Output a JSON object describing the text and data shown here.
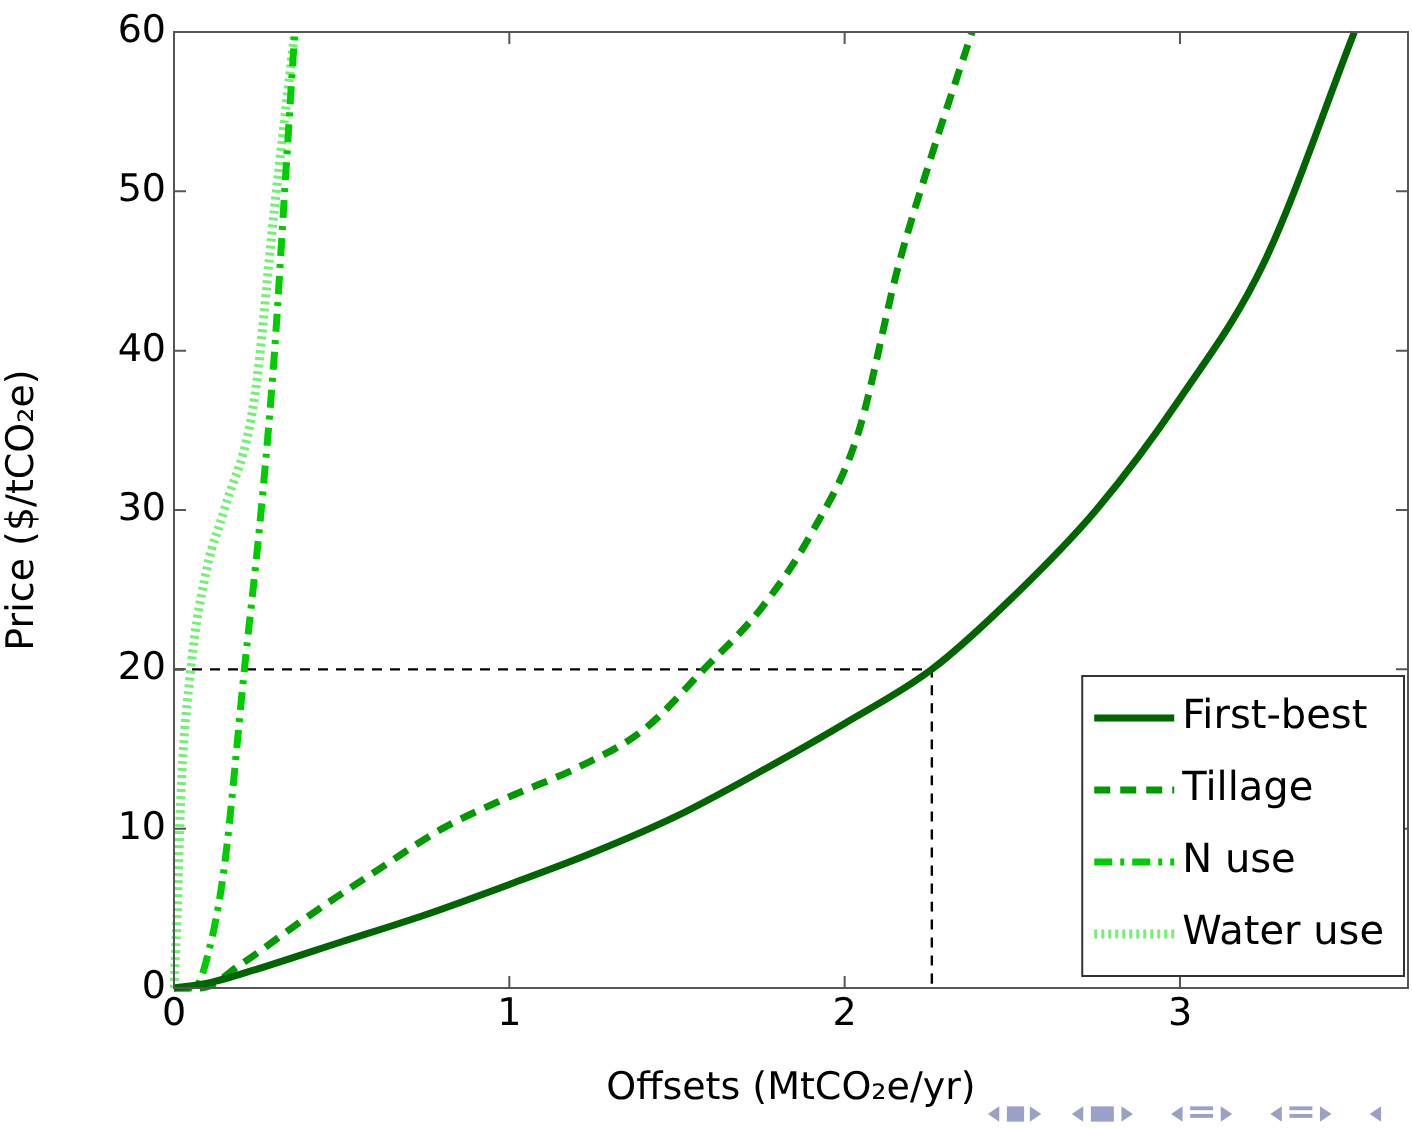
{
  "chart_data": {
    "type": "line",
    "xlabel": "Offsets (MtCO₂e/yr)",
    "ylabel": "Price ($/tCO₂e)",
    "xlim": [
      0,
      3.68
    ],
    "xticks": [
      0,
      1,
      2,
      3
    ],
    "ylim": [
      0,
      60
    ],
    "yticks": [
      0,
      10,
      20,
      30,
      40,
      50,
      60
    ],
    "grid": false,
    "legend": "bottom right",
    "marker": "none",
    "series": [
      {
        "name": "First-best",
        "color": "#006400",
        "line_style": "solid",
        "x": [
          0,
          0.1,
          0.25,
          0.5,
          0.75,
          1,
          1.25,
          1.5,
          1.75,
          2,
          2.26,
          2.5,
          2.75,
          3,
          3.25,
          3.52
        ],
        "values": [
          0,
          0.3,
          1.2,
          2.9,
          4.6,
          6.5,
          8.5,
          10.8,
          13.6,
          16.6,
          20,
          24.5,
          30,
          37,
          45.5,
          60
        ]
      },
      {
        "name": "Tillage",
        "color": "#009900",
        "line_style": "dashed",
        "x": [
          0,
          0.08,
          0.2,
          0.4,
          0.6,
          0.8,
          1,
          1.2,
          1.4,
          1.58,
          1.75,
          1.9,
          2.04,
          2.16,
          2.26,
          2.38
        ],
        "values": [
          0,
          0,
          1.5,
          4.5,
          7.3,
          10,
          12,
          13.8,
          16.2,
          20,
          23.8,
          28.5,
          34.8,
          45.3,
          52.3,
          60
        ]
      },
      {
        "name": "N use",
        "color": "#00cc00",
        "line_style": "dashdot",
        "x": [
          0,
          0.06,
          0.1,
          0.15,
          0.21,
          0.26,
          0.3,
          0.33,
          0.36
        ],
        "values": [
          0,
          0,
          2,
          7.6,
          20,
          30,
          40,
          50,
          60
        ]
      },
      {
        "name": "Water use",
        "color": "#77ee77",
        "line_style": "dotted",
        "x": [
          0,
          0.01,
          0.02,
          0.05,
          0.1,
          0.15,
          0.24,
          0.3,
          0.36
        ],
        "values": [
          0,
          5,
          11.8,
          20,
          26.5,
          30,
          37,
          49,
          60
        ]
      },
      {
        "color": "#000000",
        "line_style": "dashed",
        "x": [
          0,
          2.26,
          2.26
        ],
        "values": [
          20,
          20,
          0
        ]
      }
    ]
  }
}
